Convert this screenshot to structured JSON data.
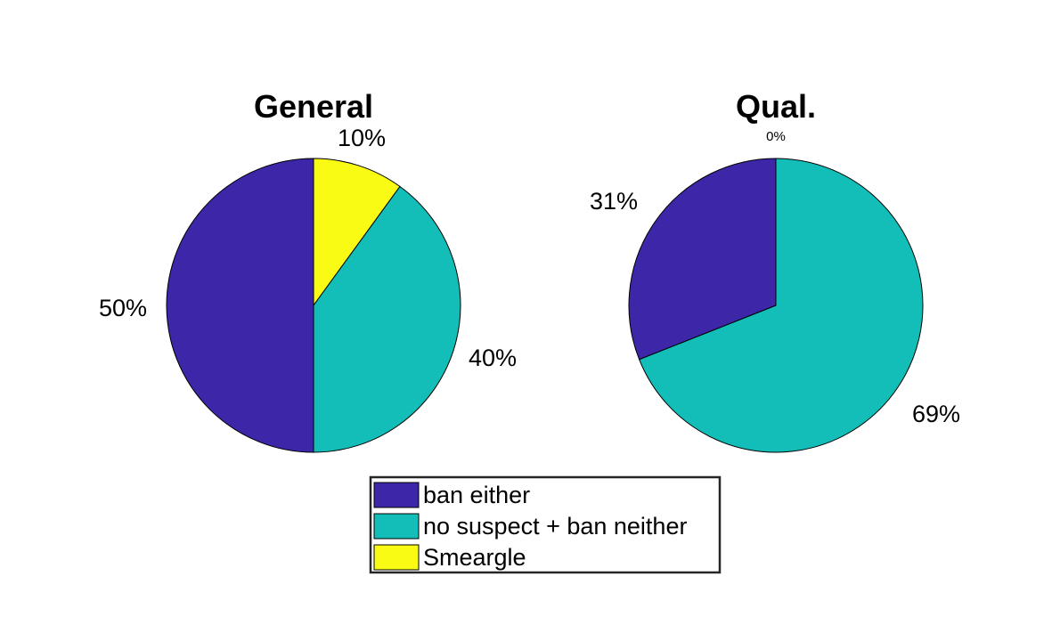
{
  "chart_data": [
    {
      "type": "pie",
      "title": "General",
      "slices": [
        {
          "name": "ban either",
          "value": 50,
          "label": "50%"
        },
        {
          "name": "no suspect + ban neither",
          "value": 40,
          "label": "40%"
        },
        {
          "name": "Smeargle",
          "value": 10,
          "label": "10%"
        }
      ]
    },
    {
      "type": "pie",
      "title": "Qual.",
      "slices": [
        {
          "name": "ban either",
          "value": 31,
          "label": "31%"
        },
        {
          "name": "no suspect + ban neither",
          "value": 69,
          "label": "69%"
        },
        {
          "name": "Smeargle",
          "value": 0,
          "label": "0%"
        }
      ]
    }
  ],
  "legend": {
    "placement": "bottom-center",
    "items": [
      {
        "label": "ban either",
        "color": "#3e26a8"
      },
      {
        "label": "no suspect + ban neither",
        "color": "#13beb8"
      },
      {
        "label": "Smeargle",
        "color": "#f9fb15"
      }
    ]
  }
}
